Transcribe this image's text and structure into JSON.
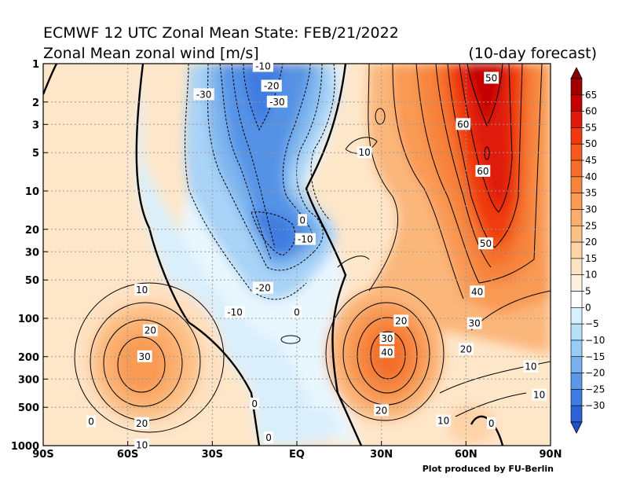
{
  "chart_data": {
    "type": "contour",
    "title": "ECMWF 12 UTC Zonal Mean State: FEB/21/2022",
    "subtitle": "Zonal Mean zonal wind [m/s]",
    "forecast_note": "(10-day forecast)",
    "credit": "Plot produced by FU-Berlin",
    "x_axis": {
      "ticks": [
        "90S",
        "60S",
        "30S",
        "EQ",
        "30N",
        "60N",
        "90N"
      ],
      "values": [
        -90,
        -60,
        -30,
        0,
        30,
        60,
        90
      ],
      "range": [
        -90,
        90
      ]
    },
    "y_axis": {
      "ticks": [
        "1",
        "2",
        "3",
        "5",
        "10",
        "20",
        "30",
        "50",
        "100",
        "200",
        "300",
        "500",
        "1000"
      ],
      "values": [
        1,
        2,
        3,
        5,
        10,
        20,
        30,
        50,
        100,
        200,
        300,
        500,
        1000
      ],
      "scale": "log",
      "inverted": true,
      "range": [
        1,
        1000
      ]
    },
    "grid": true,
    "colorbar": {
      "labels": [
        "65",
        "60",
        "55",
        "50",
        "45",
        "40",
        "35",
        "30",
        "25",
        "20",
        "15",
        "10",
        "5",
        "0",
        "−5",
        "−10",
        "−15",
        "−20",
        "−25",
        "−30"
      ],
      "colors": [
        "#a00000",
        "#c40000",
        "#e01a0a",
        "#ef3a10",
        "#f45a1f",
        "#f46e2c",
        "#f7843c",
        "#f99a55",
        "#fbad6c",
        "#fcc087",
        "#fdd3a7",
        "#fee3c3",
        "#fff1e0",
        "#ffffff",
        "#d7f0fd",
        "#b9e0fb",
        "#98cbf5",
        "#78b1ee",
        "#5c97e8",
        "#3f7be0",
        "#2d63d6"
      ]
    },
    "contour_labels": [
      {
        "text": "-10",
        "lat": -12,
        "p": 1.05
      },
      {
        "text": "-20",
        "lat": -9,
        "p": 1.5
      },
      {
        "text": "-30",
        "lat": -7,
        "p": 2.0
      },
      {
        "text": "-30",
        "lat": -33,
        "p": 1.75
      },
      {
        "text": "10",
        "lat": 24,
        "p": 5.0
      },
      {
        "text": "0",
        "lat": 2,
        "p": 17
      },
      {
        "text": "-10",
        "lat": 3,
        "p": 24
      },
      {
        "text": "-20",
        "lat": -12,
        "p": 58
      },
      {
        "text": "-10",
        "lat": -22,
        "p": 90
      },
      {
        "text": "0",
        "lat": 0,
        "p": 90
      },
      {
        "text": "10",
        "lat": -55,
        "p": 60
      },
      {
        "text": "20",
        "lat": -52,
        "p": 125
      },
      {
        "text": "30",
        "lat": -54,
        "p": 200
      },
      {
        "text": "20",
        "lat": -55,
        "p": 670
      },
      {
        "text": "10",
        "lat": -55,
        "p": 990
      },
      {
        "text": "0",
        "lat": -73,
        "p": 650
      },
      {
        "text": "0",
        "lat": -15,
        "p": 470
      },
      {
        "text": "0",
        "lat": -10,
        "p": 870
      },
      {
        "text": "50",
        "lat": 69,
        "p": 1.3
      },
      {
        "text": "60",
        "lat": 59,
        "p": 3.0
      },
      {
        "text": "60",
        "lat": 66,
        "p": 7.0
      },
      {
        "text": "50",
        "lat": 67,
        "p": 26
      },
      {
        "text": "40",
        "lat": 64,
        "p": 62
      },
      {
        "text": "30",
        "lat": 63,
        "p": 110
      },
      {
        "text": "20",
        "lat": 37,
        "p": 105
      },
      {
        "text": "30",
        "lat": 32,
        "p": 145
      },
      {
        "text": "40",
        "lat": 32,
        "p": 185
      },
      {
        "text": "20",
        "lat": 60,
        "p": 175
      },
      {
        "text": "10",
        "lat": 83,
        "p": 240
      },
      {
        "text": "10",
        "lat": 86,
        "p": 400
      },
      {
        "text": "20",
        "lat": 30,
        "p": 530
      },
      {
        "text": "10",
        "lat": 52,
        "p": 640
      },
      {
        "text": "0",
        "lat": 69,
        "p": 670
      }
    ]
  }
}
